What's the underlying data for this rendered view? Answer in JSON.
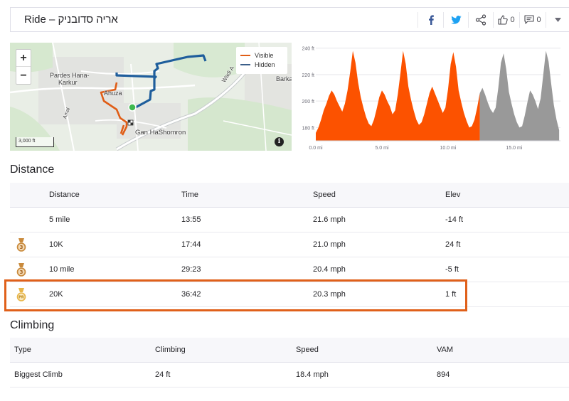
{
  "header": {
    "title": "אריה סדובניק – Ride",
    "kudos_count": "0",
    "comments_count": "0"
  },
  "map": {
    "labels": {
      "pardes": "Pardes Hana-\nKarkur",
      "pardes_line1": "Pardes Hana-",
      "pardes_line2": "Karkur",
      "ahuza": "Ahuza",
      "gan": "Gan HaShomron",
      "barka": "Barka",
      "wadi": "Wadi A",
      "amal": "Amal"
    },
    "zoom_in": "+",
    "zoom_out": "−",
    "legend": [
      {
        "label": "Visible",
        "color": "#e05d16"
      },
      {
        "label": "Hidden",
        "color": "#3b5f8a"
      }
    ],
    "scale_label": "3,000 ft",
    "info_label": "i"
  },
  "elevation_chart": {
    "y_ticks": [
      "240 ft",
      "220 ft",
      "200 ft",
      "180 ft"
    ],
    "x_ticks": [
      "0.0 mi",
      "5.0 mi",
      "10.0 mi",
      "15.0 mi"
    ],
    "colors": {
      "visible": "#fc5200",
      "hidden": "#999999"
    }
  },
  "chart_data": {
    "type": "area",
    "x_unit": "mi",
    "y_unit": "ft",
    "xlim": [
      0,
      18.5
    ],
    "ylim": [
      170,
      242
    ],
    "visible_until_mi": 12.5,
    "x": [
      0.0,
      0.2,
      0.4,
      0.6,
      0.8,
      1.0,
      1.2,
      1.4,
      1.6,
      1.8,
      2.0,
      2.2,
      2.4,
      2.6,
      2.8,
      3.0,
      3.2,
      3.4,
      3.6,
      3.8,
      4.0,
      4.2,
      4.4,
      4.6,
      4.8,
      5.0,
      5.2,
      5.4,
      5.6,
      5.8,
      6.0,
      6.2,
      6.4,
      6.6,
      6.8,
      7.0,
      7.2,
      7.4,
      7.6,
      7.8,
      8.0,
      8.2,
      8.4,
      8.6,
      8.8,
      9.0,
      9.2,
      9.4,
      9.6,
      9.8,
      10.0,
      10.2,
      10.4,
      10.6,
      10.8,
      11.0,
      11.2,
      11.4,
      11.6,
      11.8,
      12.0,
      12.2,
      12.4,
      12.6,
      12.8,
      13.0,
      13.2,
      13.4,
      13.6,
      13.8,
      14.0,
      14.2,
      14.4,
      14.6,
      14.8,
      15.0,
      15.2,
      15.4,
      15.6,
      15.8,
      16.0,
      16.2,
      16.4,
      16.6,
      16.8,
      17.0,
      17.2,
      17.4,
      17.6,
      17.8,
      18.0,
      18.2,
      18.4
    ],
    "series": [
      {
        "values": [
          176,
          180,
          186,
          193,
          198,
          204,
          208,
          205,
          200,
          196,
          192,
          198,
          208,
          222,
          238,
          229,
          214,
          203,
          195,
          188,
          183,
          181,
          186,
          194,
          203,
          208,
          205,
          200,
          196,
          190,
          193,
          205,
          221,
          238,
          228,
          211,
          201,
          193,
          186,
          182,
          184,
          190,
          198,
          206,
          211,
          206,
          201,
          196,
          191,
          195,
          209,
          228,
          237,
          226,
          208,
          199,
          191,
          185,
          180,
          181,
          186,
          195,
          206,
          210,
          205,
          199,
          194,
          191,
          195,
          210,
          229,
          236,
          224,
          207,
          198,
          190,
          184,
          180,
          181,
          189,
          199,
          208,
          205,
          200,
          194,
          202,
          220,
          238,
          230,
          213,
          197,
          186,
          178
        ]
      }
    ]
  },
  "distance": {
    "title": "Distance",
    "columns": [
      "Distance",
      "Time",
      "Speed",
      "Elev"
    ],
    "rows": [
      {
        "distance": "5 mile",
        "time": "13:55",
        "speed": "21.6 mph",
        "elev": "-14 ft",
        "medal": ""
      },
      {
        "distance": "10K",
        "time": "17:44",
        "speed": "21.0 mph",
        "elev": "24 ft",
        "medal": "3"
      },
      {
        "distance": "10 mile",
        "time": "29:23",
        "speed": "20.4 mph",
        "elev": "-5 ft",
        "medal": "3"
      },
      {
        "distance": "20K",
        "time": "36:42",
        "speed": "20.3 mph",
        "elev": "1 ft",
        "medal": "PR"
      }
    ]
  },
  "climbing": {
    "title": "Climbing",
    "columns": [
      "Type",
      "Climbing",
      "Speed",
      "VAM"
    ],
    "rows": [
      {
        "type": "Biggest Climb",
        "climbing": "24 ft",
        "speed": "18.4 mph",
        "vam": "894"
      }
    ]
  },
  "colors": {
    "accent": "#fc5200",
    "highlight": "#e0601a",
    "facebook": "#3b5998",
    "twitter": "#1da1f2",
    "medal_bronze": "#c98a3c",
    "medal_gold": "#e8b64a"
  }
}
